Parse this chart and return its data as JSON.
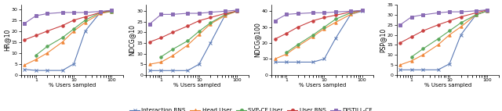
{
  "x_values": [
    0.5,
    1.0,
    2.0,
    5.0,
    10.0,
    20.0,
    50.0,
    100.0
  ],
  "subplots": [
    {
      "ylabel": "HR@10",
      "curves": {
        "Interaction RNS": [
          2.5,
          2.0,
          2.0,
          2.0,
          5.0,
          20.0,
          28.5,
          29.0
        ],
        "Head User": [
          4.5,
          7.0,
          10.0,
          15.0,
          20.0,
          24.0,
          28.0,
          29.0
        ],
        "SVP-CF User": [
          null,
          9.0,
          13.0,
          17.0,
          21.0,
          25.0,
          28.5,
          29.0
        ],
        "User RNS": [
          16.0,
          18.0,
          20.0,
          22.5,
          25.0,
          26.5,
          28.5,
          29.5
        ],
        "DISTILL-CF": [
          23.5,
          27.0,
          28.0,
          28.5,
          28.5,
          28.5,
          29.0,
          29.5
        ]
      },
      "ylim": [
        0,
        32
      ]
    },
    {
      "ylabel": "NDCG@10",
      "curves": {
        "Interaction RNS": [
          2.0,
          2.0,
          2.0,
          2.0,
          5.0,
          15.0,
          28.5,
          30.0
        ],
        "Head User": [
          5.0,
          6.0,
          9.0,
          14.0,
          19.0,
          24.0,
          28.0,
          30.0
        ],
        "SVP-CF User": [
          null,
          8.5,
          12.0,
          16.0,
          20.5,
          24.5,
          28.5,
          30.0
        ],
        "User RNS": [
          15.5,
          17.5,
          20.0,
          23.0,
          25.5,
          27.0,
          29.0,
          30.0
        ],
        "DISTILL-CF": [
          24.0,
          28.5,
          28.5,
          29.0,
          29.0,
          29.5,
          30.0,
          30.5
        ]
      },
      "ylim": [
        0,
        33
      ]
    },
    {
      "ylabel": "NDCG@100",
      "curves": {
        "Interaction RNS": [
          8.0,
          8.0,
          8.0,
          8.0,
          10.0,
          23.0,
          38.0,
          40.0
        ],
        "Head User": [
          10.0,
          13.0,
          18.0,
          24.0,
          29.0,
          33.0,
          38.0,
          40.5
        ],
        "SVP-CF User": [
          null,
          14.0,
          19.0,
          25.0,
          30.0,
          35.0,
          39.0,
          40.5
        ],
        "User RNS": [
          22.5,
          26.0,
          30.0,
          34.0,
          36.0,
          37.5,
          39.5,
          40.5
        ],
        "DISTILL-CF": [
          34.0,
          38.0,
          38.5,
          39.0,
          39.0,
          39.5,
          40.0,
          40.5
        ]
      },
      "ylim": [
        0,
        44
      ]
    },
    {
      "ylabel": "PSP@10",
      "curves": {
        "Interaction RNS": [
          2.5,
          2.5,
          2.5,
          2.5,
          5.5,
          20.0,
          30.0,
          32.0
        ],
        "Head User": [
          5.0,
          7.0,
          10.0,
          15.0,
          20.0,
          24.0,
          30.0,
          32.0
        ],
        "SVP-CF User": [
          null,
          9.0,
          13.0,
          18.0,
          22.0,
          26.0,
          30.0,
          32.0
        ],
        "User RNS": [
          16.0,
          19.0,
          22.0,
          25.0,
          27.0,
          29.0,
          31.0,
          32.5
        ],
        "DISTILL-CF": [
          25.0,
          29.0,
          30.0,
          31.0,
          31.5,
          31.5,
          32.0,
          32.5
        ]
      },
      "ylim": [
        0,
        35
      ]
    }
  ],
  "legend_entries": [
    {
      "label": "Interaction RNS",
      "color": "#5b7ab5",
      "marker": "x",
      "linestyle": "-"
    },
    {
      "label": "Head User",
      "color": "#f0873a",
      "marker": "^",
      "linestyle": "-"
    },
    {
      "label": "SVP-CF User",
      "color": "#5ba85b",
      "marker": "o",
      "linestyle": "-"
    },
    {
      "label": "User RNS",
      "color": "#c94040",
      "marker": "o",
      "linestyle": "-"
    },
    {
      "label": "DISTILL-CF",
      "color": "#8b6db5",
      "marker": "s",
      "linestyle": "-"
    }
  ],
  "xlabel": "% Users sampled",
  "figure_width": 6.4,
  "figure_height": 1.42,
  "dpi": 100
}
